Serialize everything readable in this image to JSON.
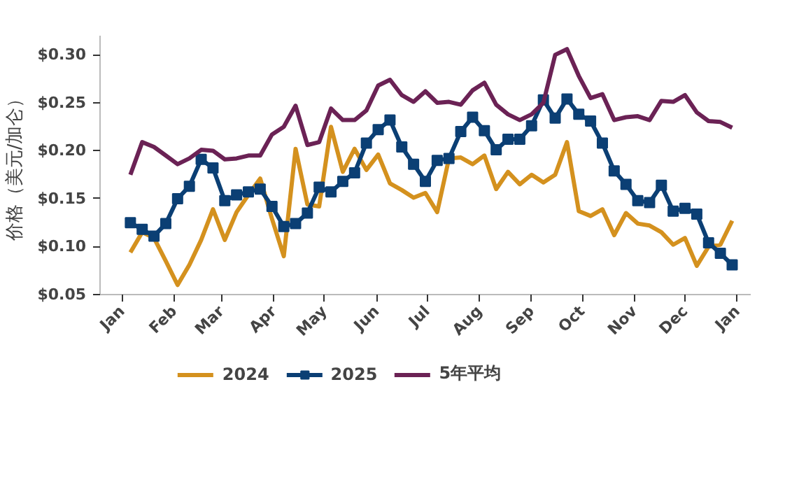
{
  "chart_data": {
    "type": "line",
    "ylabel": "价格（美元/加仑）",
    "x": [
      "2025-01-06",
      "2025-01-13",
      "2025-01-20",
      "2025-01-27",
      "2025-02-03",
      "2025-02-10",
      "2025-02-17",
      "2025-02-24",
      "2025-03-03",
      "2025-03-10",
      "2025-03-17",
      "2025-03-24",
      "2025-03-31",
      "2025-04-07",
      "2025-04-14",
      "2025-04-21",
      "2025-04-28",
      "2025-05-05",
      "2025-05-12",
      "2025-05-19",
      "2025-05-26",
      "2025-06-02",
      "2025-06-09",
      "2025-06-16",
      "2025-06-23",
      "2025-06-30",
      "2025-07-07",
      "2025-07-14",
      "2025-07-21",
      "2025-07-28",
      "2025-08-04",
      "2025-08-11",
      "2025-08-18",
      "2025-08-25",
      "2025-09-01",
      "2025-09-08",
      "2025-09-15",
      "2025-09-22",
      "2025-09-29",
      "2025-10-06",
      "2025-10-13",
      "2025-10-20",
      "2025-10-27",
      "2025-11-03",
      "2025-11-10",
      "2025-11-17",
      "2025-11-24",
      "2025-12-01",
      "2025-12-08",
      "2025-12-15",
      "2025-12-22",
      "2025-12-29"
    ],
    "xlim": [
      "2024-12-19",
      "2026-01-09"
    ],
    "xticks": [
      {
        "value": "2025-01-01",
        "label": "Jan"
      },
      {
        "value": "2025-02-01",
        "label": "Feb"
      },
      {
        "value": "2025-03-01",
        "label": "Mar"
      },
      {
        "value": "2025-04-01",
        "label": "Apr"
      },
      {
        "value": "2025-05-01",
        "label": "May"
      },
      {
        "value": "2025-06-01",
        "label": "Jun"
      },
      {
        "value": "2025-07-01",
        "label": "Jul"
      },
      {
        "value": "2025-08-01",
        "label": "Aug"
      },
      {
        "value": "2025-09-01",
        "label": "Sep"
      },
      {
        "value": "2025-10-01",
        "label": "Oct"
      },
      {
        "value": "2025-11-01",
        "label": "Nov"
      },
      {
        "value": "2025-12-01",
        "label": "Dec"
      },
      {
        "value": "2026-01-01",
        "label": "Jan"
      }
    ],
    "ylim": [
      0.05,
      0.32
    ],
    "yticks": [
      {
        "value": 0.05,
        "label": "$0.05"
      },
      {
        "value": 0.1,
        "label": "$0.10"
      },
      {
        "value": 0.15,
        "label": "$0.15"
      },
      {
        "value": 0.2,
        "label": "$0.20"
      },
      {
        "value": 0.25,
        "label": "$0.25"
      },
      {
        "value": 0.3,
        "label": "$0.30"
      }
    ],
    "grid": false,
    "legend": "bottom",
    "line_style": "solid",
    "series": [
      {
        "name": "2024",
        "color": "#d4911e",
        "marker": "none",
        "values": [
          0.094,
          0.115,
          0.109,
          0.085,
          0.06,
          0.081,
          0.107,
          0.139,
          0.107,
          0.136,
          0.154,
          0.171,
          0.129,
          0.09,
          0.202,
          0.144,
          0.142,
          0.225,
          0.178,
          0.202,
          0.18,
          0.196,
          0.166,
          0.159,
          0.151,
          0.156,
          0.136,
          0.192,
          0.193,
          0.186,
          0.195,
          0.16,
          0.178,
          0.165,
          0.175,
          0.167,
          0.175,
          0.209,
          0.137,
          0.132,
          0.139,
          0.112,
          0.135,
          0.124,
          0.122,
          0.115,
          0.102,
          0.109,
          0.08,
          0.1,
          0.102,
          0.127
        ]
      },
      {
        "name": "2025",
        "color": "#0b3f74",
        "marker": "square",
        "values": [
          0.125,
          0.118,
          0.111,
          0.124,
          0.15,
          0.163,
          0.191,
          0.182,
          0.148,
          0.154,
          0.157,
          0.16,
          0.142,
          0.121,
          0.124,
          0.135,
          0.162,
          0.157,
          0.168,
          0.177,
          0.208,
          0.222,
          0.232,
          0.204,
          0.186,
          0.168,
          0.19,
          0.192,
          0.22,
          0.235,
          0.221,
          0.201,
          0.212,
          0.212,
          0.226,
          0.253,
          0.234,
          0.254,
          0.238,
          0.231,
          0.208,
          0.179,
          0.165,
          0.148,
          0.146,
          0.164,
          0.137,
          0.14,
          0.134,
          0.104,
          0.093,
          0.081
        ]
      },
      {
        "name": "5年平均",
        "color": "#6b2255",
        "marker": "none",
        "values": [
          0.175,
          0.209,
          0.204,
          0.195,
          0.186,
          0.192,
          0.201,
          0.2,
          0.191,
          0.192,
          0.195,
          0.195,
          0.217,
          0.225,
          0.247,
          0.206,
          0.209,
          0.244,
          0.232,
          0.232,
          0.242,
          0.268,
          0.274,
          0.258,
          0.251,
          0.262,
          0.25,
          0.251,
          0.248,
          0.263,
          0.271,
          0.248,
          0.238,
          0.232,
          0.238,
          0.25,
          0.3,
          0.306,
          0.278,
          0.255,
          0.259,
          0.232,
          0.235,
          0.236,
          0.232,
          0.252,
          0.251,
          0.258,
          0.24,
          0.231,
          0.23,
          0.224
        ]
      }
    ]
  }
}
